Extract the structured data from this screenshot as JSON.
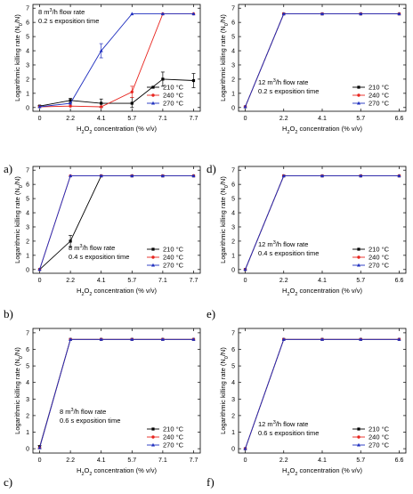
{
  "chart_data": [
    {
      "type": "line",
      "panel_label": "a)",
      "x_categories": [
        "0",
        "2.2",
        "4.1",
        "5.7",
        "7.1",
        "7.7"
      ],
      "xlabel_parts": [
        "H",
        "2",
        "O",
        "2",
        " concentration (% v/v)"
      ],
      "ylabel_parts": [
        "Logarithmic killing rate (N",
        "0",
        "/N)"
      ],
      "ylim": [
        0,
        7
      ],
      "yticks": [
        "0",
        "1",
        "2",
        "3",
        "4",
        "5",
        "6",
        "7"
      ],
      "note_parts": [
        "8 m",
        "3",
        "/h flow rate"
      ],
      "note_line2": "0.2 s exposition time",
      "note_position": "top-left",
      "legend_position": "bottom-right",
      "series": [
        {
          "name": "210 °C",
          "color": "#000000",
          "marker": "square",
          "values": [
            0.1,
            0.5,
            0.3,
            0.3,
            2.0,
            1.9
          ],
          "errors": [
            0.05,
            0.15,
            0.3,
            0.4,
            0.5,
            0.5
          ]
        },
        {
          "name": "240 °C",
          "color": "#e8251f",
          "marker": "circle",
          "values": [
            0.05,
            0.1,
            0.05,
            1.1,
            6.6,
            6.6
          ],
          "errors": [
            0,
            0,
            0,
            0.4,
            0,
            0
          ]
        },
        {
          "name": "270 °C",
          "color": "#1f2fbf",
          "marker": "triangle",
          "values": [
            0.05,
            0.3,
            4.0,
            6.6,
            6.6,
            6.6
          ],
          "errors": [
            0,
            0,
            0.5,
            0,
            0,
            0
          ]
        }
      ]
    },
    {
      "type": "line",
      "panel_label": "d)",
      "x_categories": [
        "0",
        "2.2",
        "4.1",
        "5.7",
        "6.6"
      ],
      "xlabel_parts": [
        "H",
        "2",
        "O",
        "2",
        " concentration (% v/v)"
      ],
      "ylabel_parts": [
        "Logarithmic killing rate (N",
        "0",
        "/N)"
      ],
      "ylim": [
        0,
        7
      ],
      "yticks": [
        "0",
        "1",
        "2",
        "3",
        "4",
        "5",
        "6",
        "7"
      ],
      "note_parts": [
        "12 m",
        "3",
        "/h flow rate"
      ],
      "note_line2": "0.2 s exposition time",
      "note_position": "bottom-left",
      "legend_position": "bottom-right",
      "series": [
        {
          "name": "210 °C",
          "color": "#000000",
          "marker": "square",
          "values": [
            0.05,
            6.6,
            6.6,
            6.6,
            6.6
          ]
        },
        {
          "name": "240 °C",
          "color": "#e8251f",
          "marker": "circle",
          "values": [
            0.05,
            6.6,
            6.6,
            6.6,
            6.6
          ]
        },
        {
          "name": "270 °C",
          "color": "#1f2fbf",
          "marker": "triangle",
          "values": [
            0.05,
            6.6,
            6.6,
            6.6,
            6.6
          ]
        }
      ]
    },
    {
      "type": "line",
      "panel_label": "b)",
      "x_categories": [
        "0",
        "2.2",
        "4.1",
        "5.7",
        "7.1",
        "7.7"
      ],
      "xlabel_parts": [
        "H",
        "2",
        "O",
        "2",
        " concentration (% v/v)"
      ],
      "ylabel_parts": [
        "Logarithmic killing rate (N",
        "0",
        "/N)"
      ],
      "ylim": [
        0,
        7
      ],
      "yticks": [
        "0",
        "1",
        "2",
        "3",
        "4",
        "5",
        "6",
        "7"
      ],
      "note_parts": [
        "8 m",
        "3",
        "/h flow rate"
      ],
      "note_line2": "0.4 s exposition time",
      "note_position": "bottom-center",
      "legend_position": "bottom-right",
      "series": [
        {
          "name": "210 °C",
          "color": "#000000",
          "marker": "square",
          "values": [
            0,
            2.0,
            6.6,
            6.6,
            6.6,
            6.6
          ],
          "errors": [
            0,
            0.4,
            0,
            0,
            0,
            0
          ]
        },
        {
          "name": "240 °C",
          "color": "#e8251f",
          "marker": "circle",
          "values": [
            0,
            6.6,
            6.6,
            6.6,
            6.6,
            6.6
          ]
        },
        {
          "name": "270 °C",
          "color": "#1f2fbf",
          "marker": "triangle",
          "values": [
            0,
            6.6,
            6.6,
            6.6,
            6.6,
            6.6
          ]
        }
      ]
    },
    {
      "type": "line",
      "panel_label": "e)",
      "x_categories": [
        "0",
        "2.2",
        "4.1",
        "5.7",
        "6.6"
      ],
      "xlabel_parts": [
        "H",
        "2",
        "O",
        "2",
        " concentration (% v/v)"
      ],
      "ylabel_parts": [
        "Logarithmic killing rate (N",
        "0",
        "/N)"
      ],
      "ylim": [
        0,
        7
      ],
      "yticks": [
        "0",
        "1",
        "2",
        "3",
        "4",
        "5",
        "6",
        "7"
      ],
      "note_parts": [
        "12 m",
        "3",
        "/h flow rate"
      ],
      "note_line2": "0.4 s exposition time",
      "note_position": "bottom-left",
      "legend_position": "bottom-right",
      "series": [
        {
          "name": "210 °C",
          "color": "#000000",
          "marker": "square",
          "values": [
            0,
            6.6,
            6.6,
            6.6,
            6.6
          ]
        },
        {
          "name": "240 °C",
          "color": "#e8251f",
          "marker": "circle",
          "values": [
            0,
            6.6,
            6.6,
            6.6,
            6.6
          ]
        },
        {
          "name": "270 °C",
          "color": "#1f2fbf",
          "marker": "triangle",
          "values": [
            0,
            6.6,
            6.6,
            6.6,
            6.6
          ]
        }
      ]
    },
    {
      "type": "line",
      "panel_label": "c)",
      "x_categories": [
        "0",
        "2.2",
        "4.1",
        "5.7",
        "7.1",
        "7.7"
      ],
      "xlabel_parts": [
        "H",
        "2",
        "O",
        "2",
        " concentration (% v/v)"
      ],
      "ylabel_parts": [
        "Logarithmic killing rate (N",
        "0",
        "/N)"
      ],
      "ylim": [
        0,
        7
      ],
      "yticks": [
        "0",
        "1",
        "2",
        "3",
        "4",
        "5",
        "6",
        "7"
      ],
      "note_parts": [
        "8 m",
        "3",
        "/h flow rate"
      ],
      "note_line2": "0.6 s exposition time",
      "note_position": "bottom-left",
      "legend_position": "bottom-right",
      "series": [
        {
          "name": "210 °C",
          "color": "#000000",
          "marker": "square",
          "values": [
            0.1,
            6.6,
            6.6,
            6.6,
            6.6,
            6.6
          ],
          "errors": [
            0.1,
            0,
            0,
            0,
            0,
            0
          ]
        },
        {
          "name": "240 °C",
          "color": "#e8251f",
          "marker": "circle",
          "values": [
            0.05,
            6.6,
            6.6,
            6.6,
            6.6,
            6.6
          ]
        },
        {
          "name": "270 °C",
          "color": "#1f2fbf",
          "marker": "triangle",
          "values": [
            0.05,
            6.6,
            6.6,
            6.6,
            6.6,
            6.6
          ]
        }
      ]
    },
    {
      "type": "line",
      "panel_label": "f)",
      "x_categories": [
        "0",
        "2.2",
        "4.1",
        "5.7",
        "6.6"
      ],
      "xlabel_parts": [
        "H",
        "2",
        "O",
        "2",
        " concentration (% v/v)"
      ],
      "ylabel_parts": [
        "Logarithmic killing rate (N",
        "0",
        "/N)"
      ],
      "ylim": [
        0,
        7
      ],
      "yticks": [
        "0",
        "1",
        "2",
        "3",
        "4",
        "5",
        "6",
        "7"
      ],
      "note_parts": [
        "12 m",
        "3",
        "/h flow rate"
      ],
      "note_line2": "0.6 s exposition time",
      "note_position": "bottom-left",
      "legend_position": "bottom-right",
      "series": [
        {
          "name": "210 °C",
          "color": "#000000",
          "marker": "square",
          "values": [
            0,
            6.6,
            6.6,
            6.6,
            6.6
          ]
        },
        {
          "name": "240 °C",
          "color": "#e8251f",
          "marker": "circle",
          "values": [
            0,
            6.6,
            6.6,
            6.6,
            6.6
          ]
        },
        {
          "name": "270 °C",
          "color": "#1f2fbf",
          "marker": "triangle",
          "values": [
            0,
            6.6,
            6.6,
            6.6,
            6.6
          ]
        }
      ]
    }
  ]
}
